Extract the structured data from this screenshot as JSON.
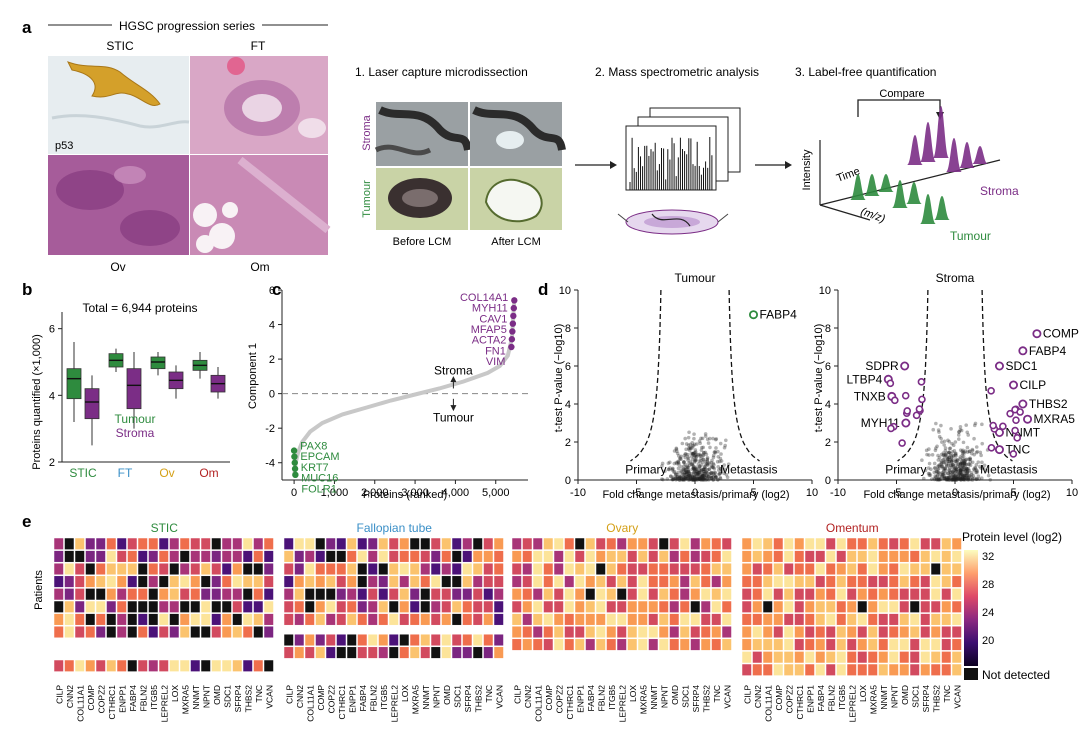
{
  "panel_a": {
    "letter": "a",
    "series_title": "HGSC progression series",
    "tissue_labels": {
      "stic": "STIC",
      "ft": "FT",
      "ov": "Ov",
      "om": "Om",
      "p53": "p53"
    },
    "steps": [
      "1. Laser capture microdissection",
      "2. Mass spectrometric analysis",
      "3. Label-free quantification"
    ],
    "lcm_rows": [
      "Stroma",
      "Tumour"
    ],
    "lcm_cols": [
      "Before LCM",
      "After LCM"
    ],
    "quant": {
      "compare": "Compare",
      "intensity": "Intensity",
      "time": "Time",
      "mz": "(m/z)",
      "stroma": "Stroma",
      "tumour": "Tumour"
    }
  },
  "colors": {
    "tumour": "#2e8b3e",
    "stroma": "#7b2d86",
    "stic": "#2e8b3e",
    "ft": "#3a8fc7",
    "ov": "#d4a017",
    "om": "#b22222"
  },
  "chart_data": [
    {
      "panel": "b",
      "type": "box",
      "title": "Total = 6,944 proteins",
      "ylabel": "Proteins quantified (×1,000)",
      "ylim": [
        2,
        6.5
      ],
      "yticks": [
        2,
        4,
        6
      ],
      "categories": [
        "STIC",
        "FT",
        "Ov",
        "Om"
      ],
      "legend": [
        "Tumour",
        "Stroma"
      ],
      "series": [
        {
          "name": "Tumour",
          "boxes": [
            {
              "min": 3.2,
              "q1": 3.9,
              "median": 4.5,
              "q3": 4.8,
              "max": 5.6
            },
            {
              "min": 4.7,
              "q1": 4.85,
              "median": 5.05,
              "q3": 5.25,
              "max": 5.4
            },
            {
              "min": 4.6,
              "q1": 4.8,
              "median": 5.0,
              "q3": 5.15,
              "max": 5.3
            },
            {
              "min": 4.5,
              "q1": 4.75,
              "median": 4.9,
              "q3": 5.05,
              "max": 5.3
            }
          ]
        },
        {
          "name": "Stroma",
          "boxes": [
            {
              "min": 2.5,
              "q1": 3.3,
              "median": 3.8,
              "q3": 4.2,
              "max": 4.6
            },
            {
              "min": 3.0,
              "q1": 3.6,
              "median": 4.3,
              "q3": 4.8,
              "max": 5.3
            },
            {
              "min": 3.9,
              "q1": 4.2,
              "median": 4.45,
              "q3": 4.7,
              "max": 4.9
            },
            {
              "min": 3.9,
              "q1": 4.1,
              "median": 4.35,
              "q3": 4.6,
              "max": 4.85
            }
          ]
        }
      ]
    },
    {
      "panel": "c",
      "type": "line",
      "xlabel": "Proteins (ranked)",
      "ylabel": "Component 1",
      "xlim": [
        -300,
        5800
      ],
      "ylim": [
        -5,
        6
      ],
      "xticks": [
        "0",
        "1,000",
        "2,000",
        "3,000",
        "4,000",
        "5,000"
      ],
      "yticks": [
        -4,
        -2,
        0,
        2,
        4,
        6
      ],
      "curve": {
        "x": [
          0,
          40,
          100,
          200,
          400,
          700,
          1200,
          1800,
          2400,
          3000,
          3600,
          4200,
          4800,
          5100,
          5300,
          5400,
          5460
        ],
        "y": [
          -4.8,
          -4.0,
          -3.4,
          -2.8,
          -2.2,
          -1.7,
          -1.2,
          -0.8,
          -0.4,
          -0.05,
          0.3,
          0.7,
          1.2,
          1.6,
          2.2,
          3.2,
          5.4
        ]
      },
      "annotations": {
        "stroma": "Stroma",
        "tumour": "Tumour"
      },
      "labels_high": [
        "COL14A1",
        "MYH11",
        "CAV1",
        "MFAP5",
        "ACTA2",
        "FN1",
        "VIM"
      ],
      "labels_low": [
        "PAX8",
        "EPCAM",
        "KRT7",
        "MUC16",
        "FOLR1"
      ]
    },
    {
      "panel": "d",
      "type": "scatter",
      "title": "Tumour",
      "xlabel": "Fold change metastasis/primary (log2)",
      "ylabel": "t-test P-value (−log10)",
      "xlim": [
        -10,
        10
      ],
      "ylim": [
        0,
        10
      ],
      "xticks": [
        -10,
        -5,
        0,
        5,
        10
      ],
      "yticks": [
        0,
        2,
        4,
        6,
        8,
        10
      ],
      "region_labels": [
        "Primary",
        "Metastasis"
      ],
      "highlighted": [
        {
          "label": "FABP4",
          "x": 5.0,
          "y": 8.7
        }
      ]
    },
    {
      "panel": "d",
      "type": "scatter",
      "title": "Stroma",
      "xlabel": "Fold change metastasis/primary (log2)",
      "ylabel": "t-test P-value (−log10)",
      "xlim": [
        -10,
        10
      ],
      "ylim": [
        0,
        10
      ],
      "xticks": [
        -10,
        -5,
        0,
        5,
        10
      ],
      "yticks": [
        0,
        2,
        4,
        6,
        8,
        10
      ],
      "region_labels": [
        "Primary",
        "Metastasis"
      ],
      "highlighted": [
        {
          "label": "COMP",
          "x": 7.0,
          "y": 7.7
        },
        {
          "label": "FABP4",
          "x": 5.8,
          "y": 6.8
        },
        {
          "label": "SDC1",
          "x": 3.8,
          "y": 6.0
        },
        {
          "label": "CILP",
          "x": 5.0,
          "y": 5.0
        },
        {
          "label": "THBS2",
          "x": 5.8,
          "y": 4.0
        },
        {
          "label": "MXRA5",
          "x": 6.2,
          "y": 3.2
        },
        {
          "label": "NNMT",
          "x": 3.8,
          "y": 2.5
        },
        {
          "label": "TNC",
          "x": 3.8,
          "y": 1.6
        },
        {
          "label": "SDPR",
          "x": -4.3,
          "y": 6.0
        },
        {
          "label": "LTBP4",
          "x": -5.7,
          "y": 5.3
        },
        {
          "label": "TNXB",
          "x": -5.4,
          "y": 4.4
        },
        {
          "label": "MYH11",
          "x": -4.2,
          "y": 3.0
        }
      ]
    },
    {
      "panel": "e",
      "type": "heatmap",
      "ylabel": "Patients",
      "colorbar": {
        "title": "Protein level (log2)",
        "ticks": [
          "32",
          "28",
          "24",
          "20"
        ],
        "not_detected": "Not detected"
      },
      "groups": [
        {
          "name": "STIC",
          "color": "#2e8b3e",
          "proteins": [
            "CILP",
            "CNN2",
            "COL11A1",
            "COMP",
            "COPZ2",
            "CTHRC1",
            "ENPP1",
            "FABP4",
            "FBLN2",
            "ITGB5",
            "LEPREL2",
            "LOX",
            "MXRA5",
            "NNMT",
            "NPNT",
            "OMD",
            "SDC1",
            "SFRP4",
            "THBS2",
            "TNC",
            "VCAN"
          ]
        },
        {
          "name": "Fallopian tube",
          "color": "#3a8fc7",
          "proteins": [
            "CILP",
            "CNN2",
            "COL11A1",
            "COMP",
            "COPZ2",
            "CTHRC1",
            "ENPP1",
            "FABP4",
            "FBLN2",
            "ITGB5",
            "LEPREL2",
            "LOX",
            "MXRA5",
            "NNMT",
            "NPNT",
            "OMD",
            "SDC1",
            "SFRP4",
            "THBS2",
            "TNC",
            "VCAN"
          ]
        },
        {
          "name": "Ovary",
          "color": "#d4a017",
          "proteins": [
            "CILP",
            "CNN2",
            "COL11A1",
            "COMP",
            "COPZ2",
            "CTHRC1",
            "ENPP1",
            "FABP4",
            "FBLN2",
            "ITGB5",
            "LEPREL2",
            "LOX",
            "MXRA5",
            "NNMT",
            "NPNT",
            "OMD",
            "SDC1",
            "SFRP4",
            "THBS2",
            "TNC",
            "VCAN"
          ]
        },
        {
          "name": "Omentum",
          "color": "#b22222",
          "proteins": [
            "CILP",
            "CNN2",
            "COL11A1",
            "COMP",
            "COPZ2",
            "CTHRC1",
            "ENPP1",
            "FABP4",
            "FBLN2",
            "ITGB5",
            "LEPREL2",
            "LOX",
            "MXRA5",
            "NNMT",
            "NPNT",
            "OMD",
            "SDC1",
            "SFRP4",
            "THBS2",
            "TNC",
            "VCAN"
          ]
        }
      ]
    }
  ]
}
